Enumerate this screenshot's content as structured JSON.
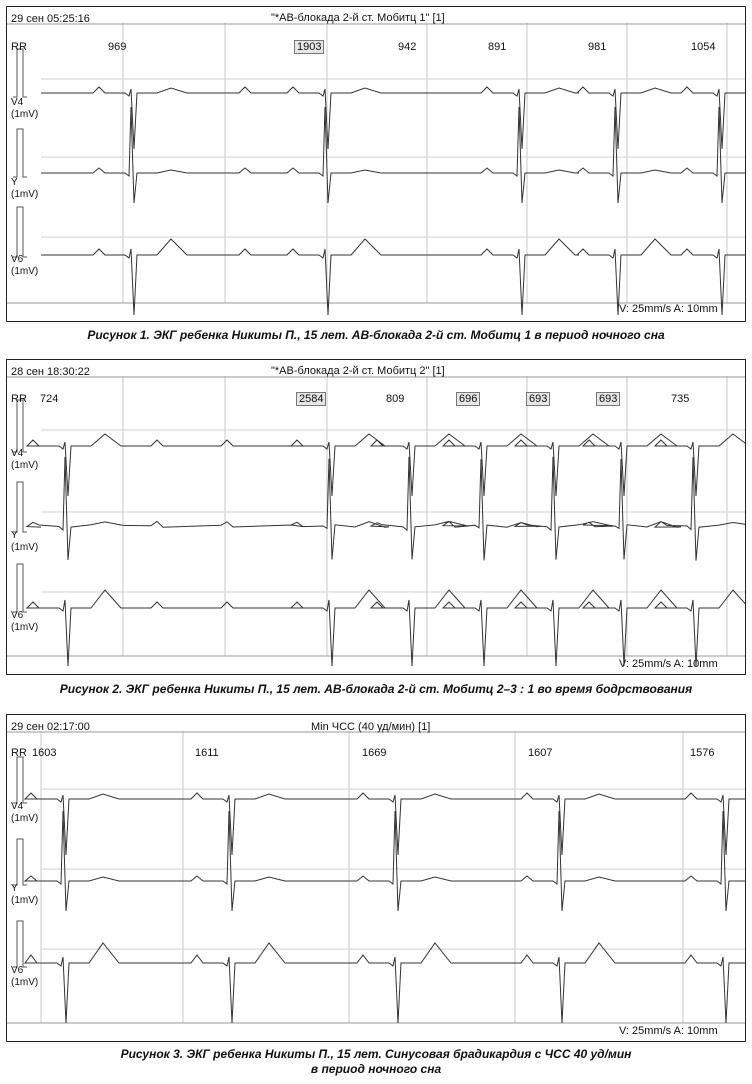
{
  "panels": [
    {
      "timestamp": "29 сен 05:25:16",
      "title": "\"*АВ-блокада 2-й ст. Мобитц 1\" [1]",
      "rr_label": "RR",
      "rr": [
        {
          "text": "969",
          "boxed": false
        },
        {
          "text": "1903",
          "boxed": true
        },
        {
          "text": "942",
          "boxed": false
        },
        {
          "text": "891",
          "boxed": false
        },
        {
          "text": "981",
          "boxed": false
        },
        {
          "text": "1054",
          "boxed": false
        }
      ],
      "leads": [
        {
          "name": "V4",
          "unit": "(1mV)"
        },
        {
          "name": "Y",
          "unit": "(1mV)"
        },
        {
          "name": "V6",
          "unit": "(1mV)"
        }
      ],
      "footer": "V: 25mm/s  A: 10mm",
      "caption": "Рисунок 1. ЭКГ ребенка Никиты П., 15 лет. АВ-блокада 2-й ст. Мобитц 1 в период ночного сна"
    },
    {
      "timestamp": "28 сен 18:30:22",
      "title": "\"*АВ-блокада 2-й ст. Мобитц 2\" [1]",
      "rr_label": "RR",
      "rr": [
        {
          "text": "724",
          "boxed": false
        },
        {
          "text": "2584",
          "boxed": true
        },
        {
          "text": "809",
          "boxed": false
        },
        {
          "text": "696",
          "boxed": true
        },
        {
          "text": "693",
          "boxed": true
        },
        {
          "text": "693",
          "boxed": true
        },
        {
          "text": "735",
          "boxed": false
        }
      ],
      "leads": [
        {
          "name": "V4",
          "unit": "(1mV)"
        },
        {
          "name": "Y",
          "unit": "(1mV)"
        },
        {
          "name": "V6",
          "unit": "(1mV)"
        }
      ],
      "footer": "V: 25mm/s  A: 10mm",
      "caption": "Рисунок 2. ЭКГ ребенка Никиты П., 15 лет. АВ-блокада 2-й ст. Мобитц 2–3 : 1 во время бодрствования"
    },
    {
      "timestamp": "29 сен 02:17:00",
      "title": "Min ЧСС (40 уд/мин) [1]",
      "rr_label": "RR",
      "rr": [
        {
          "text": "1603",
          "boxed": false
        },
        {
          "text": "1611",
          "boxed": false
        },
        {
          "text": "1669",
          "boxed": false
        },
        {
          "text": "1607",
          "boxed": false
        },
        {
          "text": "1576",
          "boxed": false
        }
      ],
      "leads": [
        {
          "name": "V4",
          "unit": "(1mV)"
        },
        {
          "name": "Y",
          "unit": "(1mV)"
        },
        {
          "name": "V6",
          "unit": "(1mV)"
        }
      ],
      "footer": "V: 25mm/s  A: 10mm",
      "caption": "Рисунок 3. ЭКГ ребенка Никиты П., 15 лет. Синусовая брадикардия с ЧСС 40 уд/мин",
      "caption2": "в период ночного сна"
    }
  ]
}
